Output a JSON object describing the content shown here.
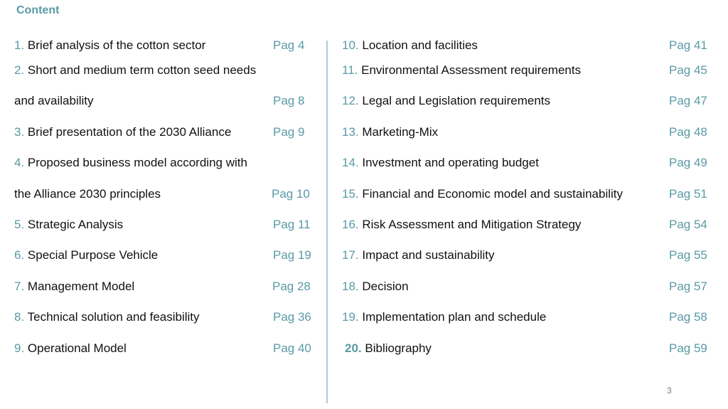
{
  "title": "Content",
  "page_number": "3",
  "left_column": [
    {
      "num": "1.",
      "text": "Brief analysis of the cotton sector",
      "page": "Pag  4"
    },
    {
      "num": "2.",
      "text": "Short and medium term cotton seed needs",
      "page": ""
    },
    {
      "num": "",
      "text": "and availability",
      "page": "Pag  8"
    },
    {
      "num": "3.",
      "text": "Brief presentation of the 2030 Alliance",
      "page": "Pag  9"
    },
    {
      "num": "4.",
      "text": "Proposed business model according with",
      "page": ""
    },
    {
      "num": "",
      "text": "the Alliance 2030 principles",
      "page": "Pag  10"
    },
    {
      "num": "5.",
      "text": "Strategic Analysis",
      "page": "Pag  11"
    },
    {
      "num": "6.",
      "text": "Special Purpose Vehicle",
      "page": "Pag  19"
    },
    {
      "num": "7.",
      "text": "Management Model",
      "page": "Pag  28"
    },
    {
      "num": "8.",
      "text": "Technical solution and feasibility",
      "page": "Pag  36"
    },
    {
      "num": "9.",
      "text": "Operational Model",
      "page": "Pag  40"
    }
  ],
  "right_column": [
    {
      "num": "10.",
      "text": "Location and facilities",
      "page": "Pag  41"
    },
    {
      "num": "11.",
      "text": "Environmental Assessment requirements",
      "page": "Pag  45"
    },
    {
      "num": "12.",
      "text": "Legal and Legislation requirements",
      "page": "Pag  47"
    },
    {
      "num": "13.",
      "text": "Marketing-Mix",
      "page": "Pag  48"
    },
    {
      "num": "14.",
      "text": "Investment and operating budget",
      "page": "Pag  49"
    },
    {
      "num": "15.",
      "text": "Financial and Economic model and sustainability",
      "page": "Pag  51"
    },
    {
      "num": "16.",
      "text": "Risk Assessment and Mitigation Strategy",
      "page": "Pag  54"
    },
    {
      "num": "17.",
      "text": "Impact and sustainability",
      "page": "Pag  55"
    },
    {
      "num": "18.",
      "text": "Decision",
      "page": "Pag  57"
    },
    {
      "num": "19.",
      "text": "Implementation plan and schedule",
      "page": "Pag  58"
    },
    {
      "num": "20.",
      "text": "Bibliography",
      "page": "Pag  59"
    }
  ],
  "colors": {
    "accent": "#5a9aa6",
    "text": "#111111",
    "divider": "#a9cdd3"
  }
}
